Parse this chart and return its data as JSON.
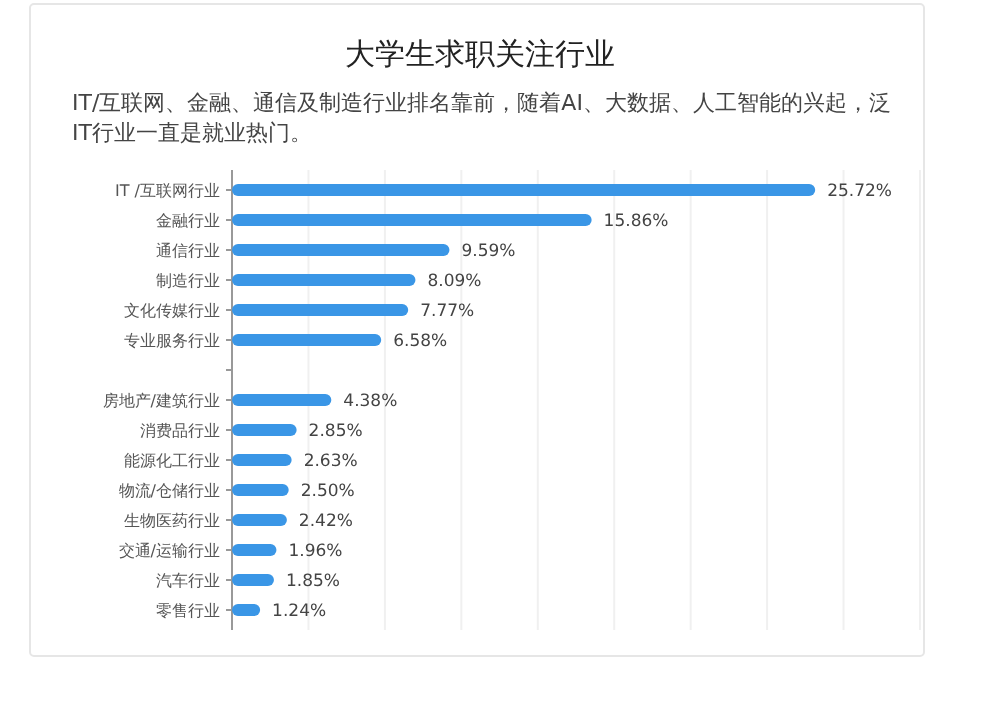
{
  "chart_data": {
    "type": "bar",
    "orientation": "horizontal",
    "title": "大学生求职关注行业",
    "subtitle": "IT/互联网、金融、通信及制造行业排名靠前，随着AI、大数据、人工智能的兴起，泛IT行业一直是就业热门。",
    "categories": [
      "IT /互联网行业",
      "金融行业",
      "通信行业",
      "制造行业",
      "文化传媒行业",
      "专业服务行业",
      null,
      "房地产/建筑行业",
      "消费品行业",
      "能源化工行业",
      "物流/仓储行业",
      "生物医药行业",
      "交通/运输行业",
      "汽车行业",
      "零售行业"
    ],
    "values": [
      25.72,
      15.86,
      9.59,
      8.09,
      7.77,
      6.58,
      null,
      4.38,
      2.85,
      2.63,
      2.5,
      2.42,
      1.96,
      1.85,
      1.24
    ],
    "value_labels": [
      "25.72%",
      "15.86%",
      "9.59%",
      "8.09%",
      "7.77%",
      "6.58%",
      null,
      "4.38%",
      "2.85%",
      "2.63%",
      "2.50%",
      "2.42%",
      "1.96%",
      "1.85%",
      "1.24%"
    ],
    "color": "#3a96e6",
    "grid": "x"
  }
}
